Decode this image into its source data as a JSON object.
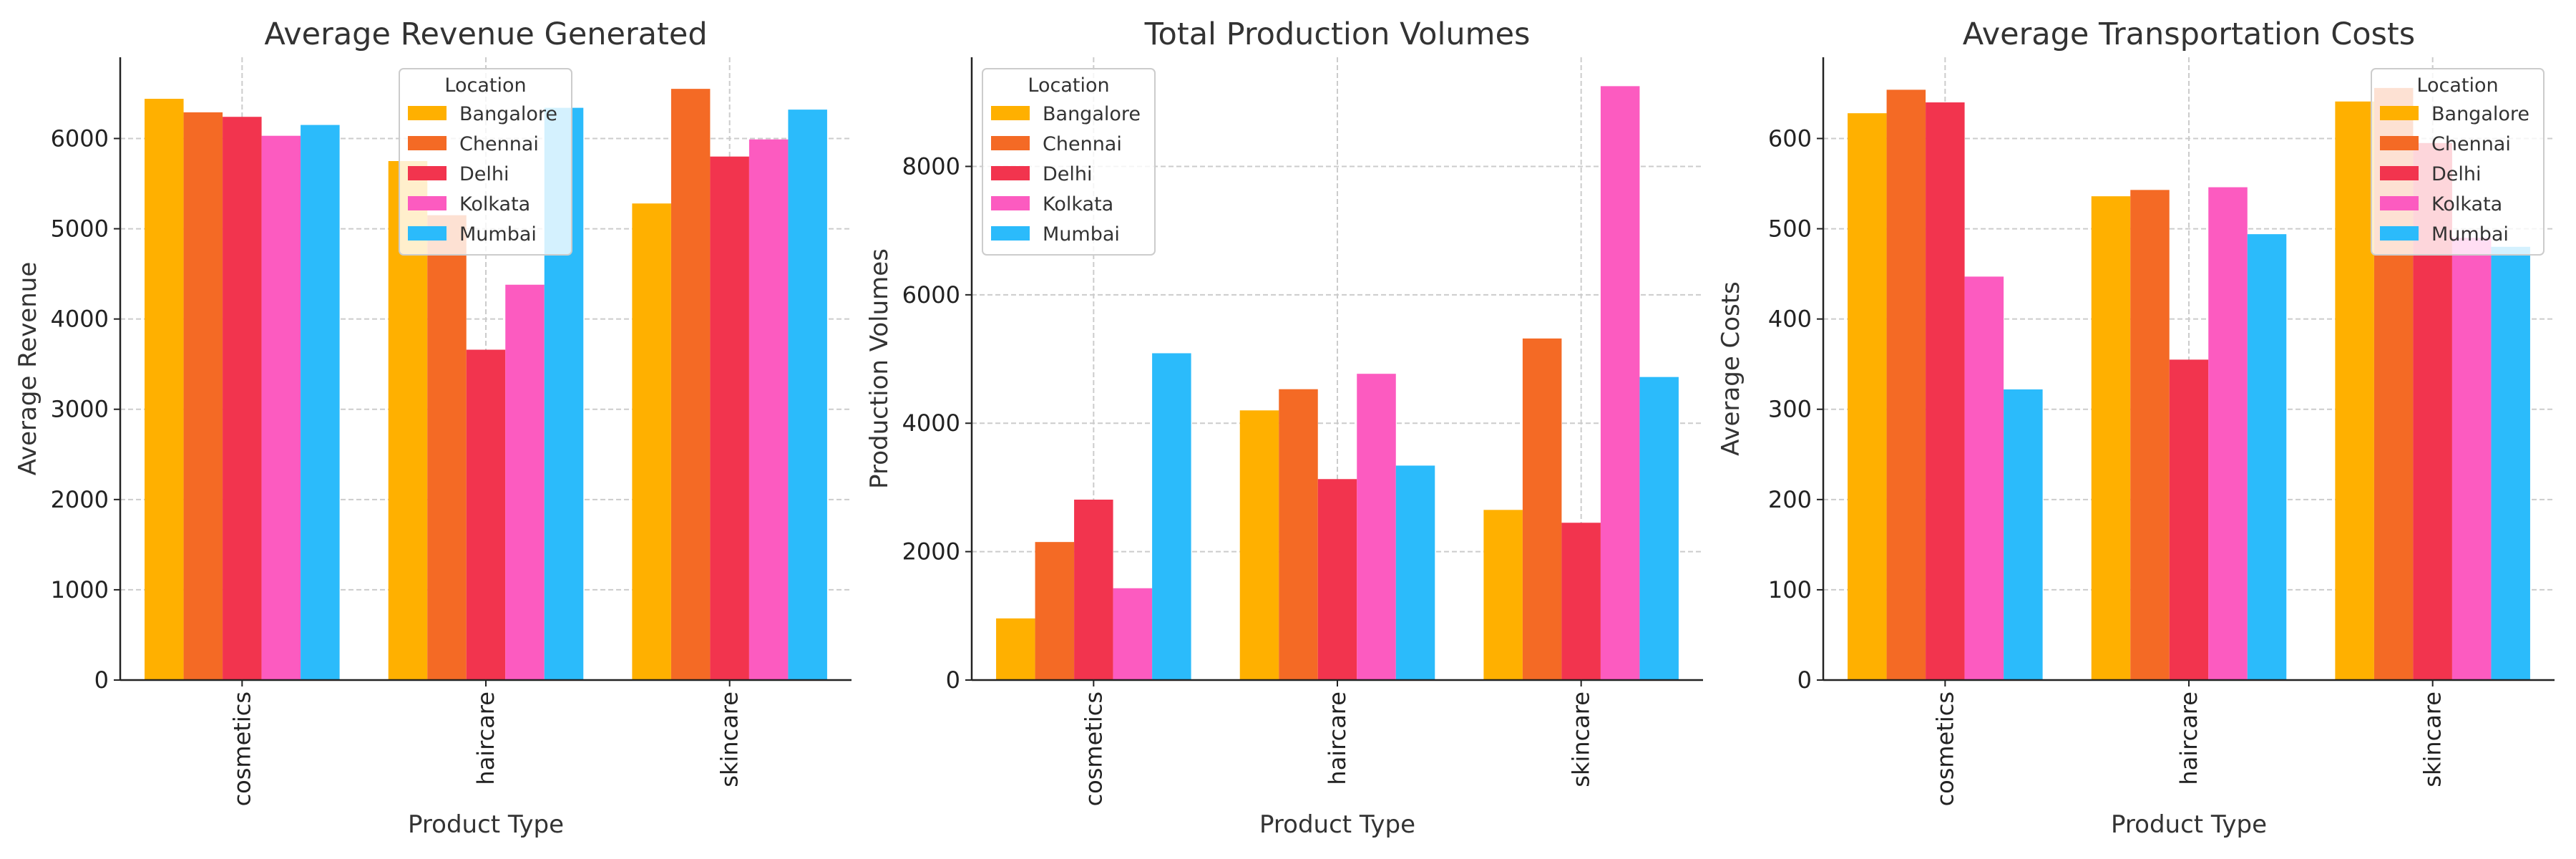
{
  "chart_data": [
    {
      "type": "bar",
      "title": "Average Revenue Generated",
      "xlabel": "Product Type",
      "ylabel": "Average Revenue",
      "categories": [
        "cosmetics",
        "haircare",
        "skincare"
      ],
      "ylim": [
        0,
        6900
      ],
      "yticks": [
        0,
        1000,
        2000,
        3000,
        4000,
        5000,
        6000
      ],
      "grid": true,
      "legend_title": "Location",
      "legend_position": "top-center",
      "series": [
        {
          "name": "Bangalore",
          "color": "#FFB000",
          "values": [
            6440,
            5750,
            5280
          ]
        },
        {
          "name": "Chennai",
          "color": "#F46A25",
          "values": [
            6290,
            5150,
            6550
          ]
        },
        {
          "name": "Delhi",
          "color": "#F2344E",
          "values": [
            6240,
            3660,
            5800
          ]
        },
        {
          "name": "Kolkata",
          "color": "#FC5BC0",
          "values": [
            6030,
            4380,
            5990
          ]
        },
        {
          "name": "Mumbai",
          "color": "#2BBBFB",
          "values": [
            6150,
            6340,
            6320
          ]
        }
      ]
    },
    {
      "type": "bar",
      "title": "Total Production Volumes",
      "xlabel": "Product Type",
      "ylabel": "Production Volumes",
      "categories": [
        "cosmetics",
        "haircare",
        "skincare"
      ],
      "ylim": [
        0,
        9700
      ],
      "yticks": [
        0,
        2000,
        4000,
        6000,
        8000
      ],
      "grid": true,
      "legend_title": "Location",
      "legend_position": "top-left",
      "series": [
        {
          "name": "Bangalore",
          "color": "#FFB000",
          "values": [
            960,
            4200,
            2650
          ]
        },
        {
          "name": "Chennai",
          "color": "#F46A25",
          "values": [
            2150,
            4530,
            5320
          ]
        },
        {
          "name": "Delhi",
          "color": "#F2344E",
          "values": [
            2810,
            3130,
            2450
          ]
        },
        {
          "name": "Kolkata",
          "color": "#FC5BC0",
          "values": [
            1430,
            4770,
            9250
          ]
        },
        {
          "name": "Mumbai",
          "color": "#2BBBFB",
          "values": [
            5090,
            3340,
            4720
          ]
        }
      ]
    },
    {
      "type": "bar",
      "title": "Average Transportation Costs",
      "xlabel": "Product Type",
      "ylabel": "Average Costs",
      "categories": [
        "cosmetics",
        "haircare",
        "skincare"
      ],
      "ylim": [
        0,
        690
      ],
      "yticks": [
        0,
        100,
        200,
        300,
        400,
        500,
        600
      ],
      "grid": true,
      "legend_title": "Location",
      "legend_position": "top-right",
      "series": [
        {
          "name": "Bangalore",
          "color": "#FFB000",
          "values": [
            628,
            536,
            641
          ]
        },
        {
          "name": "Chennai",
          "color": "#F46A25",
          "values": [
            654,
            543,
            656
          ]
        },
        {
          "name": "Delhi",
          "color": "#F2344E",
          "values": [
            640,
            355,
            595
          ]
        },
        {
          "name": "Kolkata",
          "color": "#FC5BC0",
          "values": [
            447,
            546,
            490
          ]
        },
        {
          "name": "Mumbai",
          "color": "#2BBBFB",
          "values": [
            322,
            494,
            480
          ]
        }
      ]
    }
  ]
}
